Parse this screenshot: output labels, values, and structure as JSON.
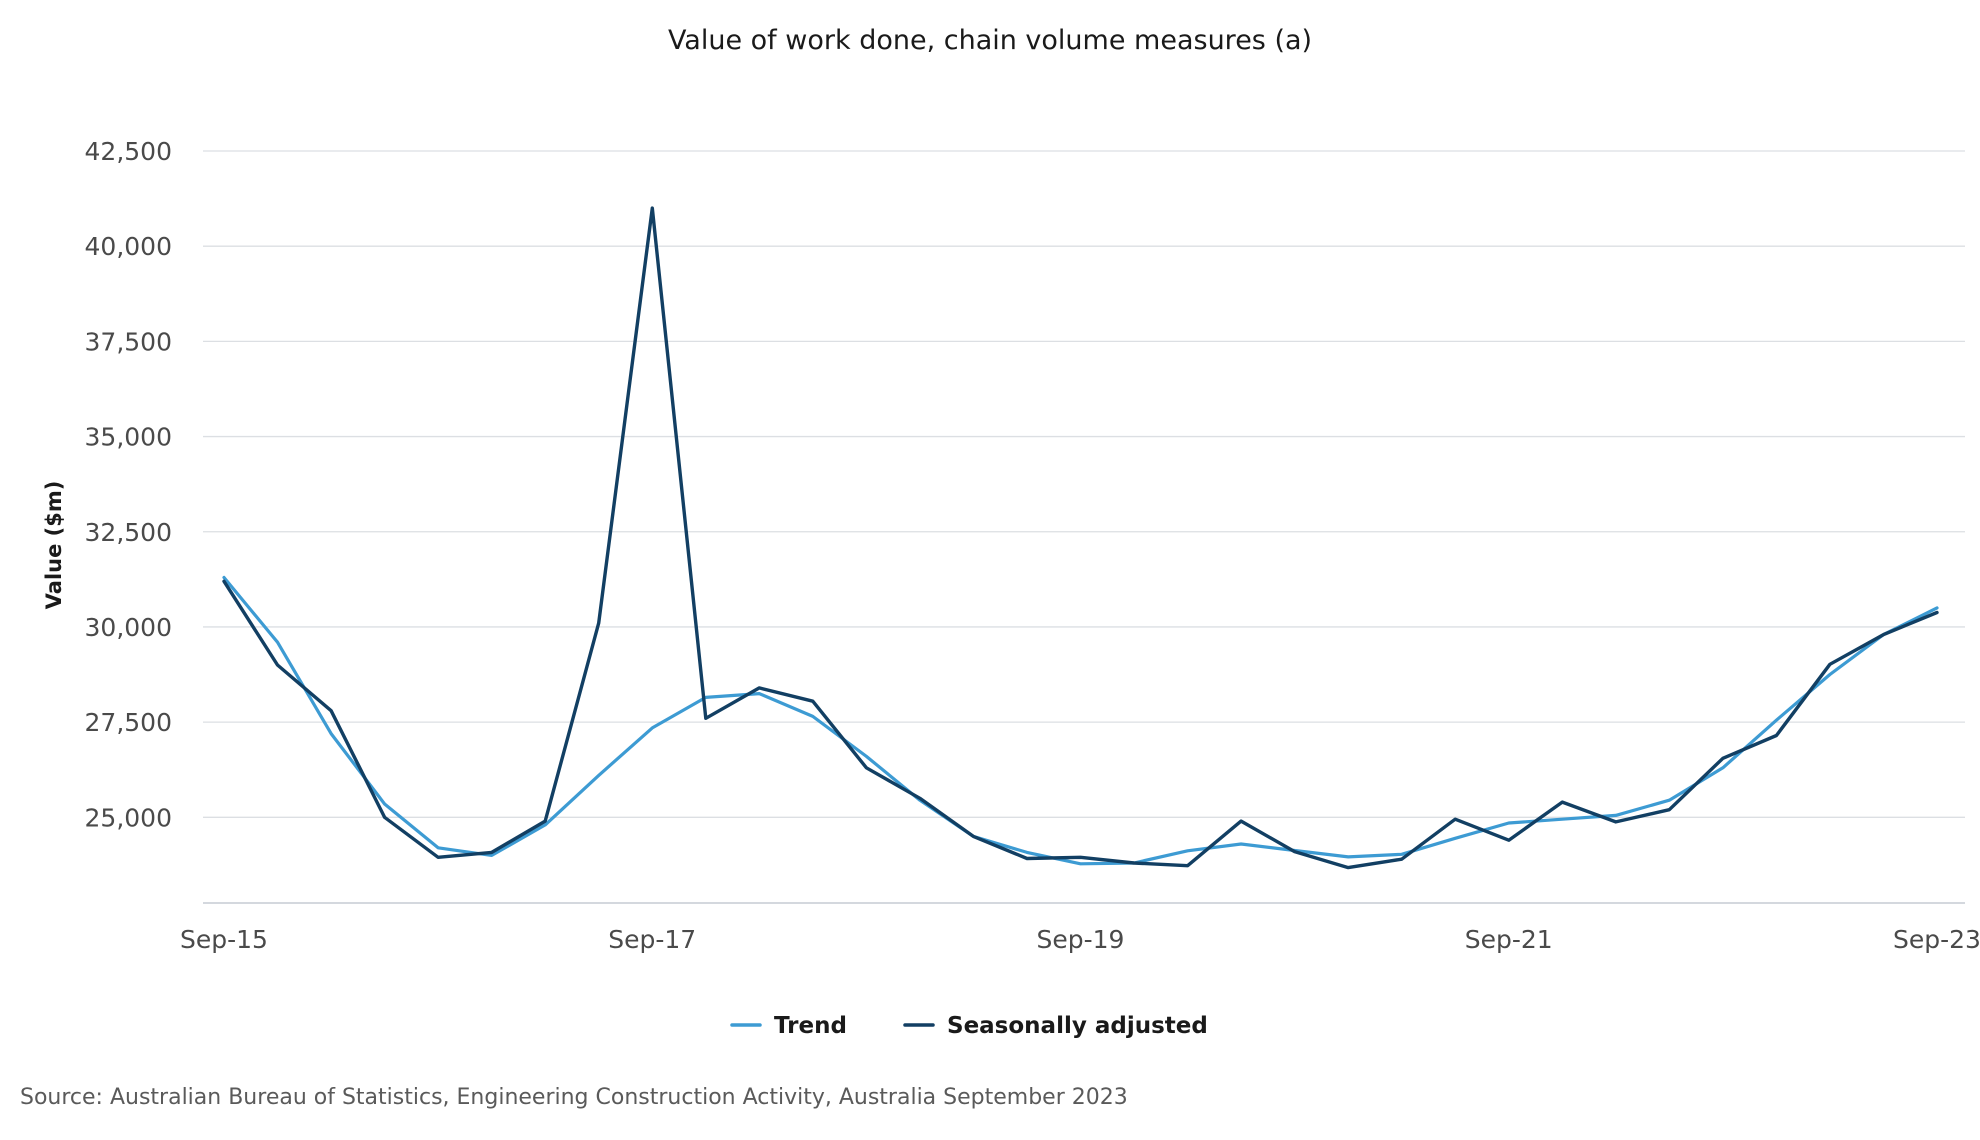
{
  "chart_data": {
    "type": "line",
    "title": "Value of work done, chain volume measures (a)",
    "xlabel": "",
    "ylabel": "Value ($m)",
    "x_tick_labels": [
      "Sep-15",
      "Sep-17",
      "Sep-19",
      "Sep-21",
      "Sep-23"
    ],
    "x_tick_quarters": [
      0,
      8,
      16,
      24,
      32
    ],
    "y_ticks": [
      25000,
      27500,
      30000,
      32500,
      35000,
      37500,
      40000,
      42500
    ],
    "y_tick_labels": [
      "25,000",
      "27,500",
      "30,000",
      "32,500",
      "35,000",
      "37,500",
      "40,000",
      "42,500"
    ],
    "ylim": [
      22750,
      42500
    ],
    "grid": true,
    "legend_position": "bottom",
    "source": "Source: Australian Bureau of Statistics, Engineering Construction Activity, Australia September 2023",
    "series": [
      {
        "name": "Trend",
        "color": "#3d9bd3",
        "values": [
          31300,
          29600,
          27200,
          25350,
          24200,
          24000,
          24800,
          26100,
          27350,
          28150,
          28250,
          27650,
          26600,
          25450,
          24500,
          24080,
          23780,
          23800,
          24120,
          24300,
          24130,
          23960,
          24030,
          24450,
          24850,
          24950,
          25050,
          25450,
          26300,
          27550,
          28750,
          29800,
          30500
        ]
      },
      {
        "name": "Seasonally adjusted",
        "color": "#123f63",
        "values": [
          31200,
          29000,
          27800,
          25000,
          23950,
          24080,
          24900,
          30100,
          41000,
          27600,
          28400,
          28050,
          26300,
          25500,
          24500,
          23920,
          23950,
          23800,
          23730,
          24900,
          24100,
          23680,
          23900,
          24950,
          24400,
          25400,
          24880,
          25200,
          26550,
          27150,
          29020,
          29800,
          30380
        ]
      }
    ]
  }
}
